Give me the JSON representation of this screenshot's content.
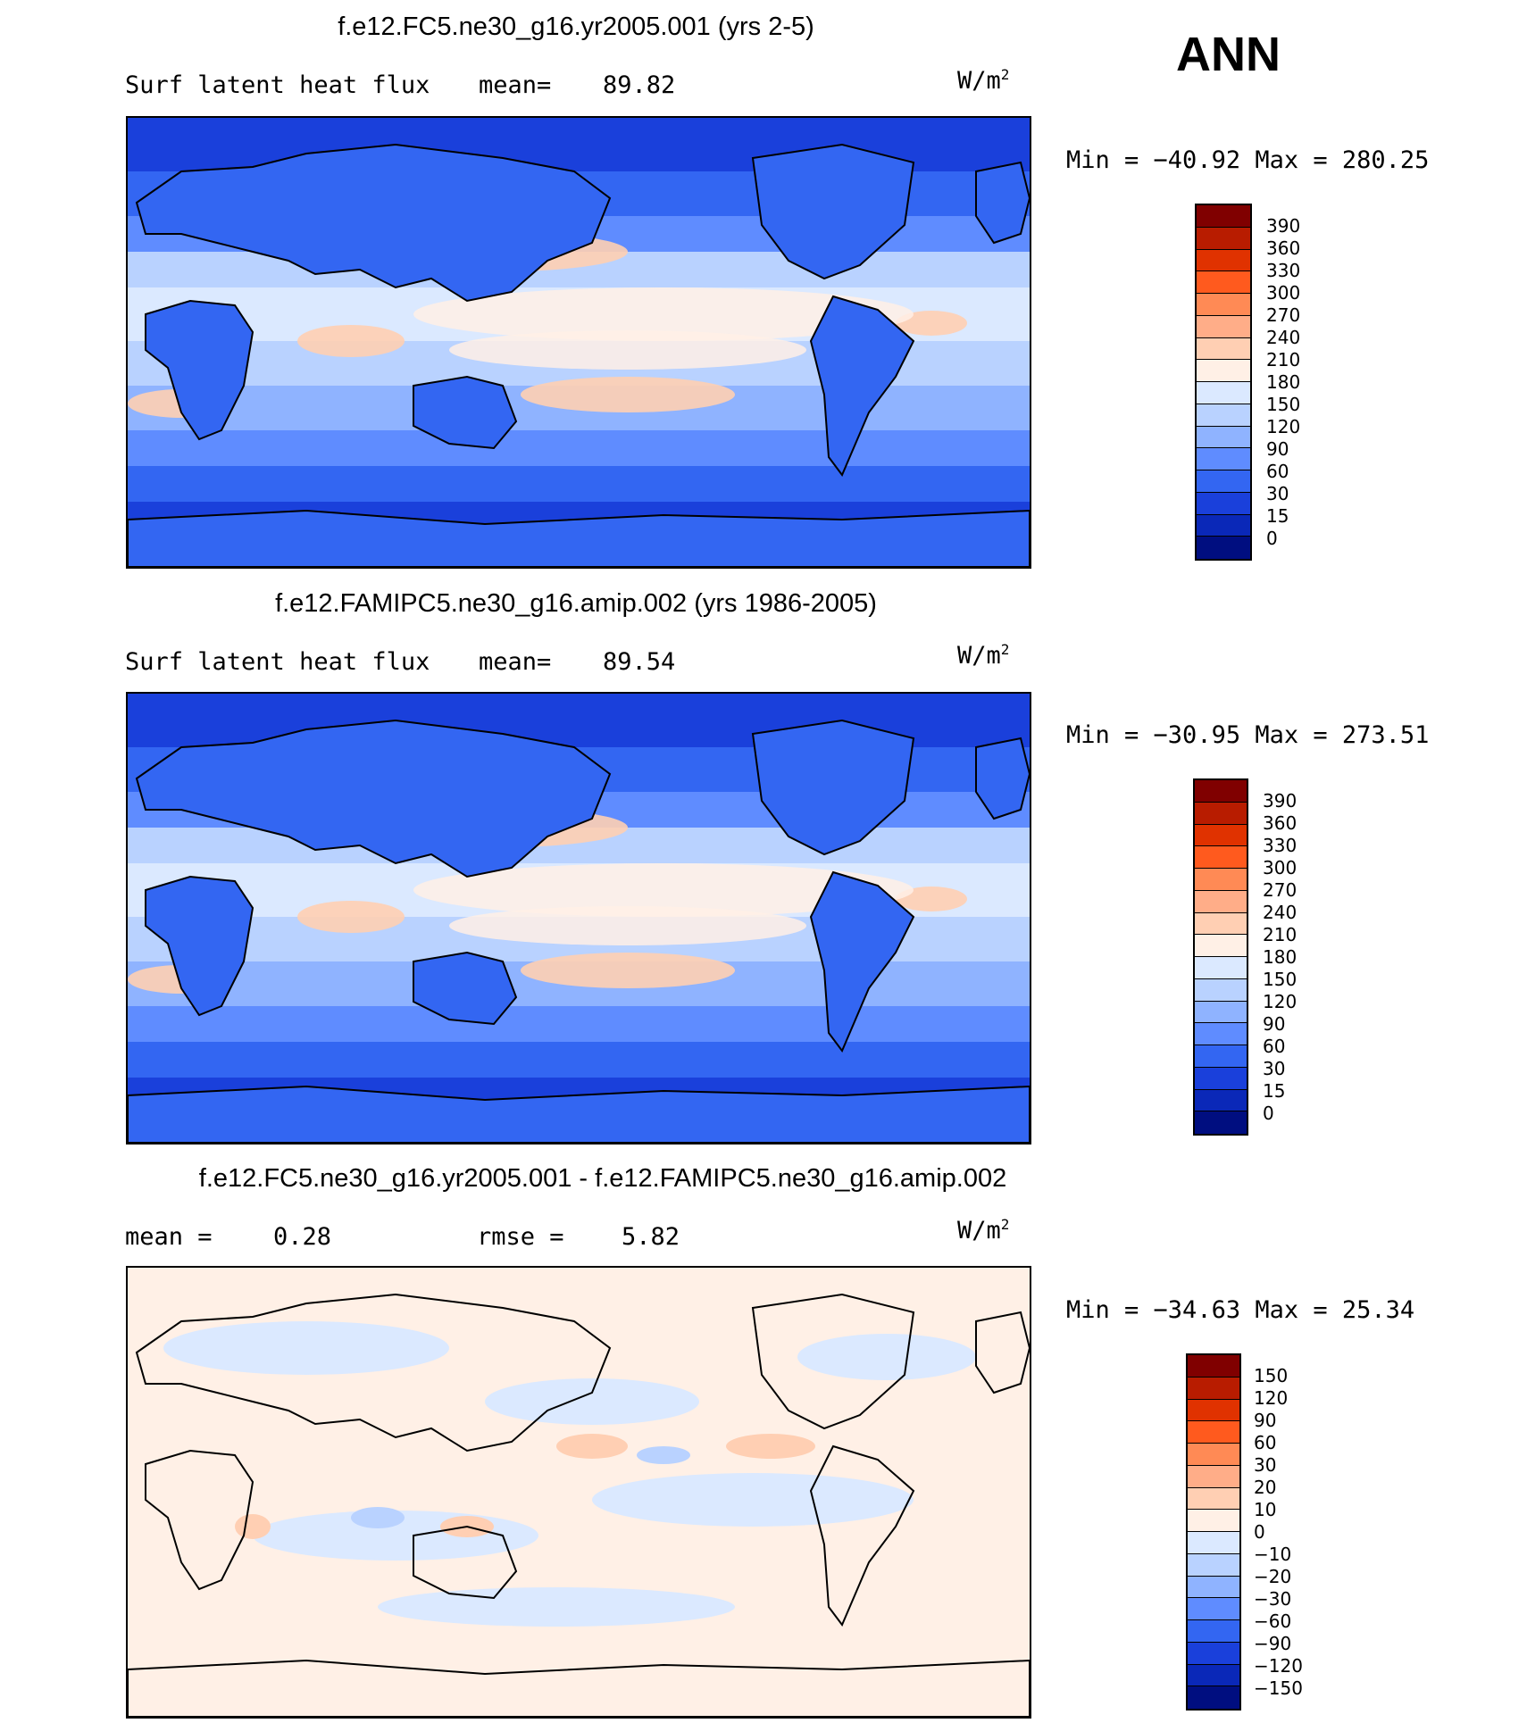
{
  "season": "ANN",
  "panels": [
    {
      "title": "f.e12.FC5.ne30_g16.yr2005.001 (yrs 2-5)",
      "left_label": "Surf latent heat flux",
      "stat1_label": "mean=",
      "stat1_value": "89.82",
      "stat2_label": "",
      "stat2_value": "",
      "units_base": "W/m",
      "units_exp": "2",
      "min_label": "Min =",
      "min_value": "−40.92",
      "max_label": "Max =",
      "max_value": "280.25",
      "kind": "abs"
    },
    {
      "title": "f.e12.FAMIPC5.ne30_g16.amip.002 (yrs 1986-2005)",
      "left_label": "Surf latent heat flux",
      "stat1_label": "mean=",
      "stat1_value": "89.54",
      "stat2_label": "",
      "stat2_value": "",
      "units_base": "W/m",
      "units_exp": "2",
      "min_label": "Min =",
      "min_value": "−30.95",
      "max_label": "Max =",
      "max_value": "273.51",
      "kind": "abs"
    },
    {
      "title": "f.e12.FC5.ne30_g16.yr2005.001 - f.e12.FAMIPC5.ne30_g16.amip.002",
      "left_label": "mean =",
      "stat1_label": "",
      "stat1_value": "0.28",
      "stat2_label": "rmse =",
      "stat2_value": "5.82",
      "units_base": "W/m",
      "units_exp": "2",
      "min_label": "Min =",
      "min_value": "−34.63",
      "max_label": "Max =",
      "max_value": "25.34",
      "kind": "diff"
    }
  ],
  "colorbar_abs": {
    "levels": [
      "390",
      "360",
      "330",
      "300",
      "270",
      "240",
      "210",
      "180",
      "150",
      "120",
      "90",
      "60",
      "30",
      "15",
      "0"
    ],
    "colors": [
      "#800000",
      "#b81c00",
      "#e03200",
      "#ff5a1e",
      "#ff8a55",
      "#ffad88",
      "#ffcfb3",
      "#fff0e6",
      "#dbe9ff",
      "#b9d2ff",
      "#8fb3ff",
      "#5f8cff",
      "#3366f2",
      "#1a40db",
      "#0a28b8",
      "#000e80"
    ]
  },
  "colorbar_diff": {
    "levels": [
      "150",
      "120",
      "90",
      "60",
      "30",
      "20",
      "10",
      "0",
      "−10",
      "−20",
      "−30",
      "−60",
      "−90",
      "−120",
      "−150"
    ],
    "colors": [
      "#800000",
      "#b81c00",
      "#e03200",
      "#ff5a1e",
      "#ff8a55",
      "#ffad88",
      "#ffcfb3",
      "#fff0e6",
      "#dbe9ff",
      "#b9d2ff",
      "#8fb3ff",
      "#5f8cff",
      "#3366f2",
      "#1a40db",
      "#0a28b8",
      "#000e80"
    ]
  }
}
